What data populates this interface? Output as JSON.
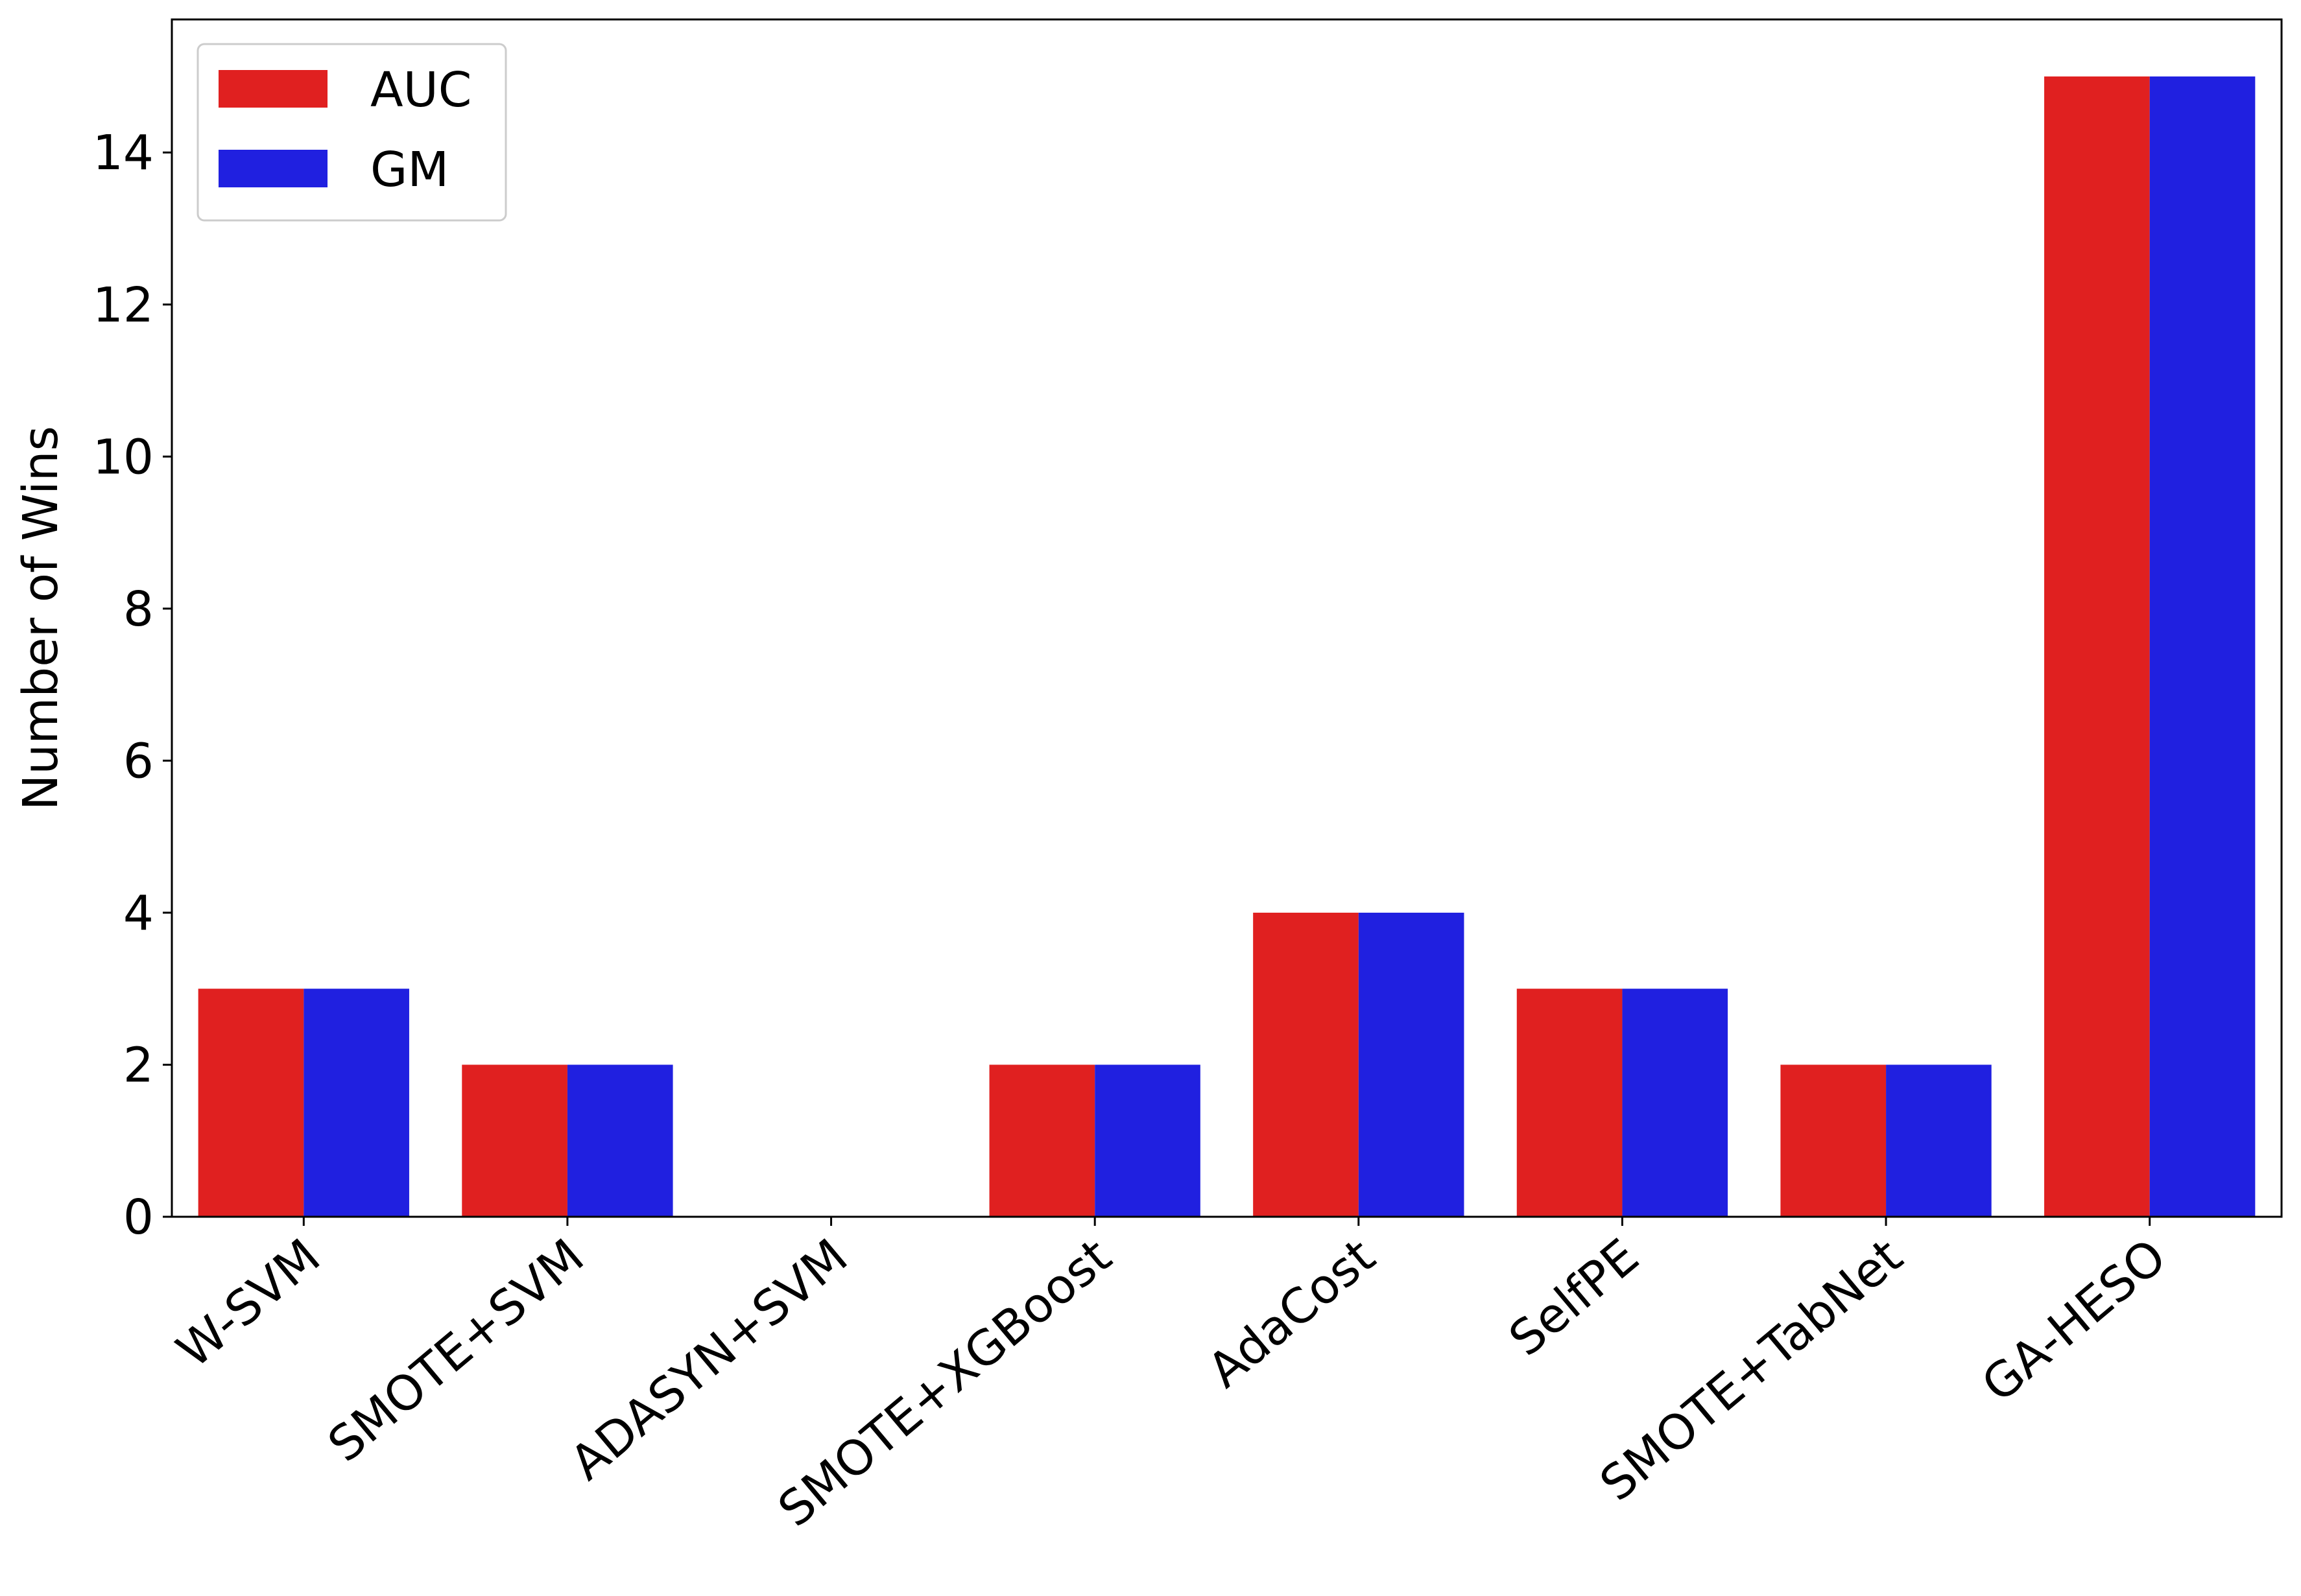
{
  "chart_data": {
    "type": "bar",
    "title": "",
    "xlabel": "",
    "ylabel": "Number of Wins",
    "categories": [
      "W-SVM",
      "SMOTE+SVM",
      "ADASYN+SVM",
      "SMOTE+XGBoost",
      "AdaCost",
      "SelfPE",
      "SMOTE+TabNet",
      "GA-HESO"
    ],
    "series": [
      {
        "name": "AUC",
        "color": "#e02020",
        "values": [
          3,
          2,
          0,
          2,
          4,
          3,
          2,
          15
        ]
      },
      {
        "name": "GM",
        "color": "#2020e0",
        "values": [
          3,
          2,
          0,
          2,
          4,
          3,
          2,
          15
        ]
      }
    ],
    "ylim": [
      0,
      15.75
    ],
    "yticks": [
      0,
      2,
      4,
      6,
      8,
      10,
      12,
      14
    ],
    "xtick_rotation": 40,
    "grid": false,
    "legend": {
      "position": "top-left"
    }
  }
}
